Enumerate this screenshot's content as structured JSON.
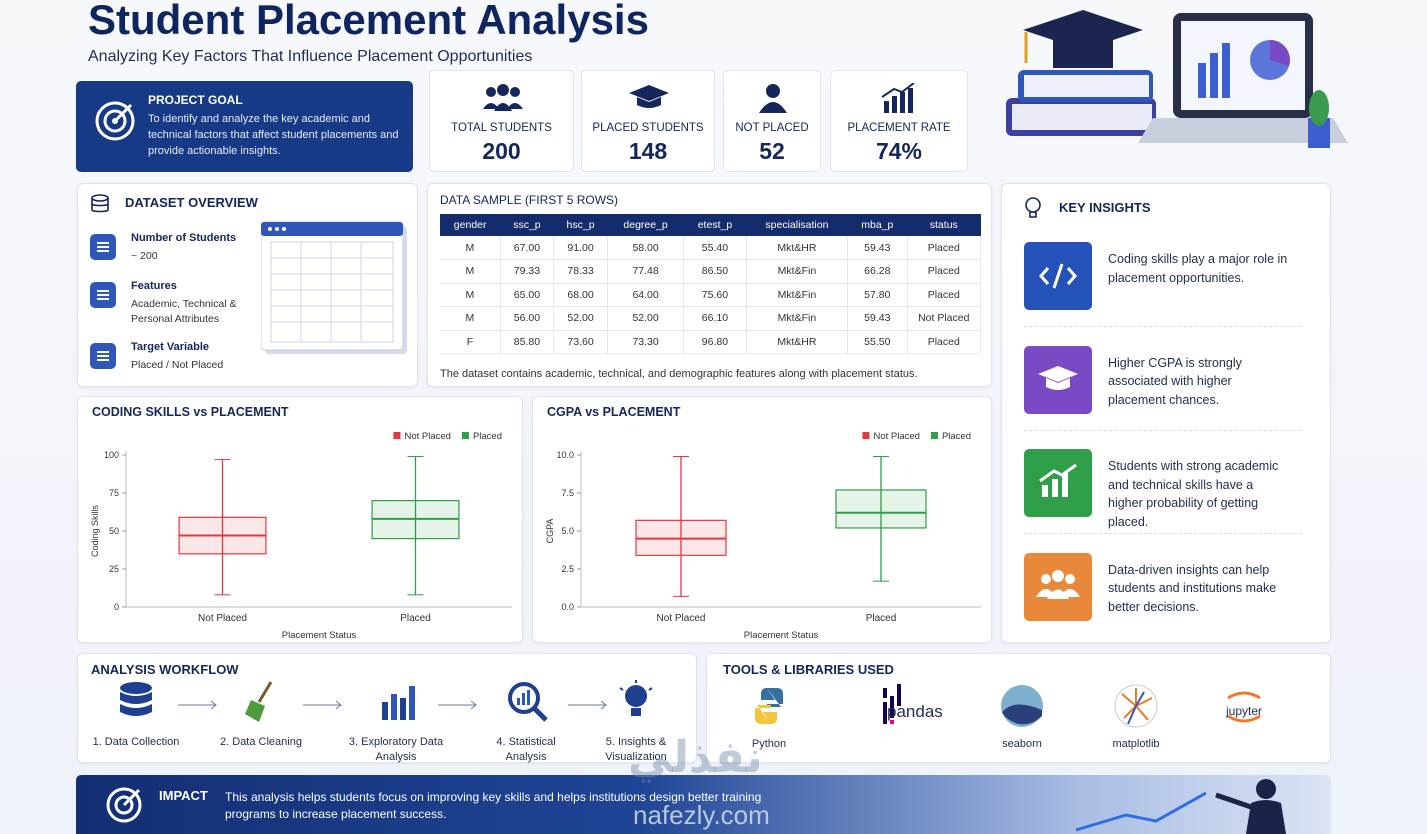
{
  "header": {
    "title": "Student Placement Analysis",
    "subtitle": "Analyzing Key Factors That Influence Placement Opportunities"
  },
  "project_goal": {
    "title": "PROJECT GOAL",
    "text": "To identify and analyze the key academic and technical factors that affect student placements and provide actionable insights."
  },
  "stats": [
    {
      "label": "TOTAL STUDENTS",
      "value": "200"
    },
    {
      "label": "PLACED STUDENTS",
      "value": "148"
    },
    {
      "label": "NOT PLACED",
      "value": "52"
    },
    {
      "label": "PLACEMENT RATE",
      "value": "74%"
    }
  ],
  "dataset_overview": {
    "title": "DATASET OVERVIEW",
    "items": [
      {
        "title": "Number of Students",
        "text": "~ 200"
      },
      {
        "title": "Features",
        "text": "Academic, Technical & Personal Attributes"
      },
      {
        "title": "Target Variable",
        "text": "Placed / Not Placed"
      }
    ]
  },
  "data_sample": {
    "title": "DATA SAMPLE (FIRST 5 ROWS)",
    "columns": [
      "gender",
      "ssc_p",
      "hsc_p",
      "degree_p",
      "etest_p",
      "specialisation",
      "mba_p",
      "status"
    ],
    "rows": [
      [
        "M",
        "67.00",
        "91.00",
        "58.00",
        "55.40",
        "Mkt&HR",
        "59.43",
        "Placed"
      ],
      [
        "M",
        "79.33",
        "78.33",
        "77.48",
        "86.50",
        "Mkt&Fin",
        "66.28",
        "Placed"
      ],
      [
        "M",
        "65.00",
        "68.00",
        "64.00",
        "75.60",
        "Mkt&Fin",
        "57.80",
        "Placed"
      ],
      [
        "M",
        "56.00",
        "52.00",
        "52.00",
        "66.10",
        "Mkt&Fin",
        "59.43",
        "Not Placed"
      ],
      [
        "F",
        "85.80",
        "73.60",
        "73.30",
        "96.80",
        "Mkt&HR",
        "55.50",
        "Placed"
      ]
    ],
    "note": "The dataset contains academic, technical, and demographic features along with placement status."
  },
  "chart_data": [
    {
      "type": "box",
      "title": "CODING SKILLS vs PLACEMENT",
      "x_label": "Placement Status",
      "y_label": "Coding Skills",
      "categories": [
        "Not Placed",
        "Placed"
      ],
      "series": [
        {
          "name": "Not Placed",
          "color": "#e0393e",
          "box": {
            "min": 8,
            "q1": 35,
            "median": 47,
            "q3": 59,
            "max": 97
          }
        },
        {
          "name": "Placed",
          "color": "#2e9e48",
          "box": {
            "min": 8,
            "q1": 45,
            "median": 58,
            "q3": 70,
            "max": 99
          }
        }
      ],
      "ylim": [
        0,
        100
      ],
      "yticks": [
        0,
        25,
        50,
        75,
        100
      ],
      "legend": "upper right"
    },
    {
      "type": "box",
      "title": "CGPA vs PLACEMENT",
      "x_label": "Placement Status",
      "y_label": "CGPA",
      "categories": [
        "Not Placed",
        "Placed"
      ],
      "series": [
        {
          "name": "Not Placed",
          "color": "#e0393e",
          "box": {
            "min": 0.7,
            "q1": 3.4,
            "median": 4.5,
            "q3": 5.7,
            "max": 9.9
          }
        },
        {
          "name": "Placed",
          "color": "#2e9e48",
          "box": {
            "min": 1.7,
            "q1": 5.2,
            "median": 6.2,
            "q3": 7.7,
            "max": 9.9
          }
        }
      ],
      "ylim": [
        0,
        10
      ],
      "yticks": [
        {
          "value": 0,
          "label": "0.0"
        },
        {
          "value": 2.5,
          "label": "2.5"
        },
        {
          "value": 5,
          "label": "5.0"
        },
        {
          "value": 7.5,
          "label": "7.5"
        },
        {
          "value": 10,
          "label": "10.0"
        }
      ],
      "legend": "upper right"
    }
  ],
  "key_insights": {
    "title": "KEY INSIGHTS",
    "items": [
      "Coding skills play a major role in placement opportunities.",
      "Higher CGPA is strongly associated with higher placement chances.",
      "Students with strong academic and technical skills have a higher probability of getting placed.",
      "Data-driven insights can help students and institutions make better decisions."
    ]
  },
  "workflow": {
    "title": "ANALYSIS WORKFLOW",
    "steps": [
      "1. Data Collection",
      "2. Data Cleaning",
      "3. Exploratory Data Analysis",
      "4. Statistical Analysis",
      "5. Insights & Visualization"
    ]
  },
  "tools": {
    "title": "TOOLS & LIBRARIES USED",
    "items": [
      "Python",
      "pandas",
      "seaborn",
      "matplotlib",
      "jupyter"
    ]
  },
  "impact": {
    "title": "IMPACT",
    "text": "This analysis helps students focus on improving key skills and helps institutions design better training programs to increase placement success."
  },
  "watermark": {
    "arabic": "نفذلي",
    "url": "nafezly.com"
  }
}
